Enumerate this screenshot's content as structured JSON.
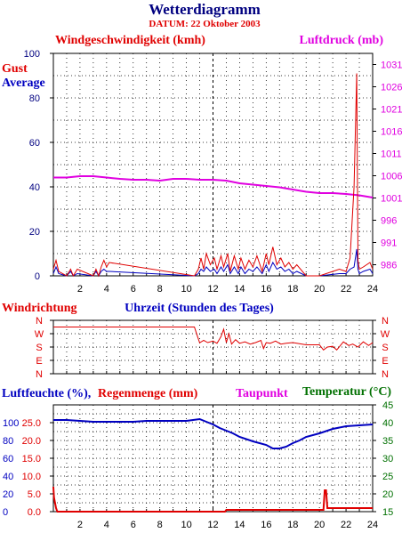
{
  "title": "Wetterdiagramm",
  "date_label": "DATUM: 22 Oktober 2003",
  "colors": {
    "red": "#e00000",
    "magenta": "#e000e0",
    "blue": "#0000c0",
    "navy": "#000080",
    "green": "#007000",
    "grid": "#000000"
  },
  "chart_data": [
    {
      "type": "line",
      "name": "wind-pressure",
      "label_left": "Windgeschwindigkeit (kmh)",
      "label_right": "Luftdruck (mb)",
      "legend": [
        "Gust",
        "Average"
      ],
      "ylim_left": [
        0,
        100
      ],
      "yticks_left": [
        "0",
        "20",
        "40",
        "60",
        "80",
        "100"
      ],
      "ylim_right": [
        983.5,
        1033.5
      ],
      "yticks_right": [
        "986",
        "991",
        "996",
        "1001",
        "1006",
        "1011",
        "1016",
        "1021",
        "1026",
        "1031"
      ],
      "xlim": [
        0,
        24
      ],
      "xticks": [
        "2",
        "4",
        "6",
        "8",
        "10",
        "12",
        "14",
        "16",
        "18",
        "20",
        "22",
        "24"
      ],
      "series": [
        {
          "name": "Luftdruck",
          "x": [
            0,
            1,
            2,
            3,
            4,
            5,
            6,
            7,
            8,
            9,
            10,
            11,
            12,
            13,
            14,
            15,
            16,
            17,
            18,
            19,
            20,
            21,
            22,
            23,
            24
          ],
          "y": [
            1005.6,
            1005.6,
            1005.9,
            1005.9,
            1005.6,
            1005.3,
            1005.1,
            1005.1,
            1004.9,
            1005.3,
            1005.3,
            1005.1,
            1005.1,
            1004.9,
            1004.3,
            1004.0,
            1003.7,
            1003.4,
            1002.9,
            1002.4,
            1002.1,
            1002.1,
            1001.9,
            1001.6,
            1001.1
          ]
        },
        {
          "name": "Gust",
          "x": [
            0,
            0.2,
            0.4,
            1.0,
            1.3,
            1.5,
            1.8,
            3.0,
            3.2,
            3.4,
            3.6,
            3.8,
            4.0,
            4.2,
            10.6,
            10.9,
            11.1,
            11.3,
            11.5,
            11.8,
            12.1,
            12.3,
            12.6,
            12.8,
            13.1,
            13.3,
            13.6,
            13.9,
            14.1,
            14.4,
            14.7,
            15.0,
            15.3,
            15.7,
            16.0,
            16.2,
            16.5,
            16.8,
            17.1,
            17.4,
            17.7,
            18.0,
            18.3,
            19.0,
            20.0,
            21.5,
            22.0,
            22.3,
            22.6,
            22.8,
            22.9,
            23.0,
            23.3,
            23.8,
            24.0
          ],
          "y": [
            3,
            7,
            2,
            0,
            3,
            0,
            3,
            0,
            3,
            0,
            4,
            7,
            4,
            6,
            0,
            3,
            8,
            3,
            10,
            5,
            8,
            3,
            9,
            4,
            10,
            2,
            9,
            3,
            8,
            3,
            7,
            4,
            9,
            2,
            10,
            5,
            13,
            5,
            8,
            4,
            6,
            3,
            5,
            0,
            0,
            3,
            2,
            8,
            40,
            91,
            7,
            3,
            4,
            6,
            3
          ]
        },
        {
          "name": "Average",
          "x": [
            0,
            0.2,
            0.4,
            1.0,
            1.3,
            1.5,
            1.8,
            3.0,
            3.2,
            3.4,
            3.6,
            3.8,
            4.0,
            4.2,
            10.6,
            10.9,
            11.1,
            11.3,
            11.5,
            11.8,
            12.1,
            12.3,
            12.6,
            12.8,
            13.1,
            13.3,
            13.6,
            13.9,
            14.1,
            14.4,
            14.7,
            15.0,
            15.3,
            15.7,
            16.0,
            16.2,
            16.5,
            16.8,
            17.1,
            17.4,
            17.7,
            18.0,
            18.3,
            19.0,
            20.0,
            21.5,
            22.0,
            22.3,
            22.6,
            22.8,
            22.9,
            23.0,
            23.3,
            23.8,
            24.0
          ],
          "y": [
            1,
            4,
            1,
            0,
            2,
            0,
            1,
            0,
            2,
            0,
            2,
            3,
            2,
            2,
            0,
            1,
            3,
            2,
            4,
            2,
            3,
            1,
            4,
            2,
            5,
            1,
            4,
            1,
            4,
            1,
            3,
            2,
            4,
            1,
            5,
            2,
            6,
            3,
            4,
            2,
            3,
            1,
            2,
            0,
            0,
            1,
            1,
            3,
            4,
            12,
            3,
            1,
            2,
            3,
            1
          ]
        }
      ]
    },
    {
      "type": "line",
      "name": "wind-direction",
      "label_left": "Windrichtung",
      "xlabel": "Uhrzeit (Stunden des Tages)",
      "yticks": [
        "N",
        "W",
        "S",
        "E",
        "N"
      ],
      "ylim": [
        0,
        360
      ],
      "xlim": [
        0,
        24
      ],
      "series": [
        {
          "name": "Windrichtung",
          "x": [
            0,
            10.6,
            10.8,
            11.0,
            11.3,
            11.6,
            12.0,
            12.3,
            12.6,
            12.8,
            13.0,
            13.2,
            13.4,
            13.7,
            14.0,
            14.4,
            14.8,
            15.2,
            15.6,
            15.8,
            16.0,
            16.3,
            16.7,
            17.1,
            17.5,
            18.0,
            19.0,
            20.0,
            20.3,
            20.6,
            21.0,
            21.3,
            21.8,
            22.2,
            22.5,
            22.9,
            23.3,
            23.7,
            24.0
          ],
          "y": [
            315,
            315,
            260,
            208,
            225,
            210,
            220,
            205,
            250,
            300,
            210,
            270,
            200,
            230,
            205,
            215,
            200,
            210,
            225,
            170,
            210,
            205,
            220,
            200,
            205,
            210,
            195,
            195,
            160,
            180,
            185,
            160,
            215,
            190,
            200,
            180,
            215,
            190,
            210
          ]
        }
      ]
    },
    {
      "type": "line",
      "name": "humidity-rain-temp",
      "label_humidity": "Luftfeuchte (%),",
      "label_rain": "Regenmenge (mm)",
      "label_dew": "Taupunkt",
      "label_temp": "Temperatur (",
      "label_temp_unit": "°C)",
      "yticks_humidity": [
        "0",
        "20",
        "40",
        "60",
        "80",
        "100"
      ],
      "yticks_rain": [
        "0.0",
        "5.0",
        "10.0",
        "15.0",
        "20.0",
        "25.0"
      ],
      "yticks_temp": [
        "15",
        "20",
        "25",
        "30",
        "35",
        "40",
        "45"
      ],
      "ylim_humidity": [
        0,
        120
      ],
      "ylim_rain": [
        0,
        30
      ],
      "xlim": [
        0,
        24
      ],
      "series": [
        {
          "name": "Luftfeuchte",
          "x": [
            0,
            1,
            2,
            3,
            4,
            5,
            6,
            7,
            8,
            9,
            10,
            10.5,
            11,
            11.5,
            12,
            12.5,
            13,
            13.5,
            14,
            15,
            16,
            16.5,
            17,
            17.5,
            18,
            18.5,
            19,
            20,
            21,
            22,
            23,
            24
          ],
          "y": [
            103,
            103,
            102,
            101,
            101,
            101,
            101,
            102,
            102,
            102,
            102,
            103,
            104,
            101,
            98,
            94,
            91,
            88,
            84,
            79,
            75,
            71,
            71,
            73,
            77,
            80,
            84,
            88,
            93,
            96,
            97,
            98
          ]
        },
        {
          "name": "Regenmenge",
          "x": [
            0,
            0.05,
            0.2,
            0.3,
            12.9,
            13.0,
            20.3,
            20.4,
            20.5,
            20.6,
            20.7,
            24
          ],
          "y": [
            7,
            4,
            1,
            0,
            0,
            0.5,
            0.5,
            6,
            6,
            1,
            1,
            1
          ]
        }
      ]
    }
  ]
}
